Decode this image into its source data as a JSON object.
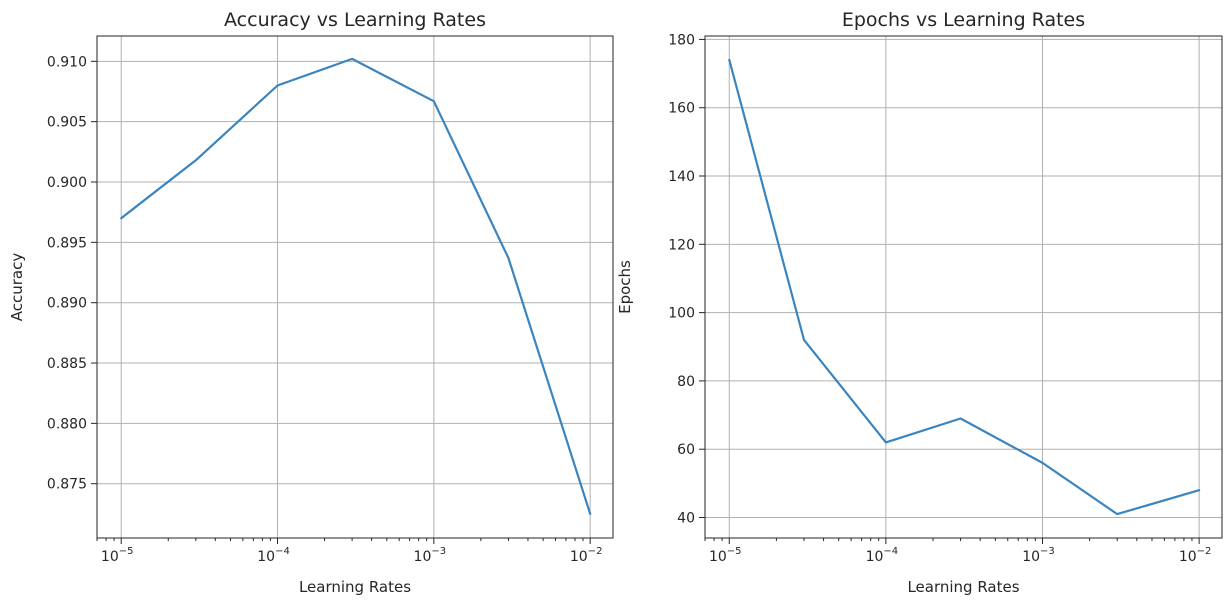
{
  "chart_data": [
    {
      "type": "line",
      "title": "Accuracy vs Learning Rates",
      "xlabel": "Learning Rates",
      "ylabel": "Accuracy",
      "xscale": "log",
      "xlim": [
        7e-06,
        0.014
      ],
      "ylim": [
        0.8705,
        0.9121
      ],
      "xticks": [
        {
          "value": 1e-05,
          "label": "10",
          "exp": "−5"
        },
        {
          "value": 0.0001,
          "label": "10",
          "exp": "−4"
        },
        {
          "value": 0.001,
          "label": "10",
          "exp": "−3"
        },
        {
          "value": 0.01,
          "label": "10",
          "exp": "−2"
        }
      ],
      "yticks": [
        0.875,
        0.88,
        0.885,
        0.89,
        0.895,
        0.9,
        0.905,
        0.91
      ],
      "ytick_decimals": 3,
      "grid": true,
      "color": "#3a85c0",
      "series": [
        {
          "x": [
            1e-05,
            3e-05,
            0.0001,
            0.0003,
            0.001,
            0.003,
            0.01
          ],
          "values": [
            0.897,
            0.9018,
            0.908,
            0.9102,
            0.9067,
            0.8937,
            0.8725
          ]
        }
      ]
    },
    {
      "type": "line",
      "title": "Epochs vs Learning Rates",
      "xlabel": "Learning Rates",
      "ylabel": "Epochs",
      "xscale": "log",
      "xlim": [
        7e-06,
        0.014
      ],
      "ylim": [
        34,
        181
      ],
      "xticks": [
        {
          "value": 1e-05,
          "label": "10",
          "exp": "−5"
        },
        {
          "value": 0.0001,
          "label": "10",
          "exp": "−4"
        },
        {
          "value": 0.001,
          "label": "10",
          "exp": "−3"
        },
        {
          "value": 0.01,
          "label": "10",
          "exp": "−2"
        }
      ],
      "yticks": [
        40,
        60,
        80,
        100,
        120,
        140,
        160,
        180
      ],
      "ytick_decimals": 0,
      "grid": true,
      "color": "#3a85c0",
      "series": [
        {
          "x": [
            1e-05,
            3e-05,
            0.0001,
            0.0003,
            0.001,
            0.003,
            0.01
          ],
          "values": [
            174,
            92,
            62,
            69,
            56,
            41,
            48
          ]
        }
      ]
    }
  ]
}
